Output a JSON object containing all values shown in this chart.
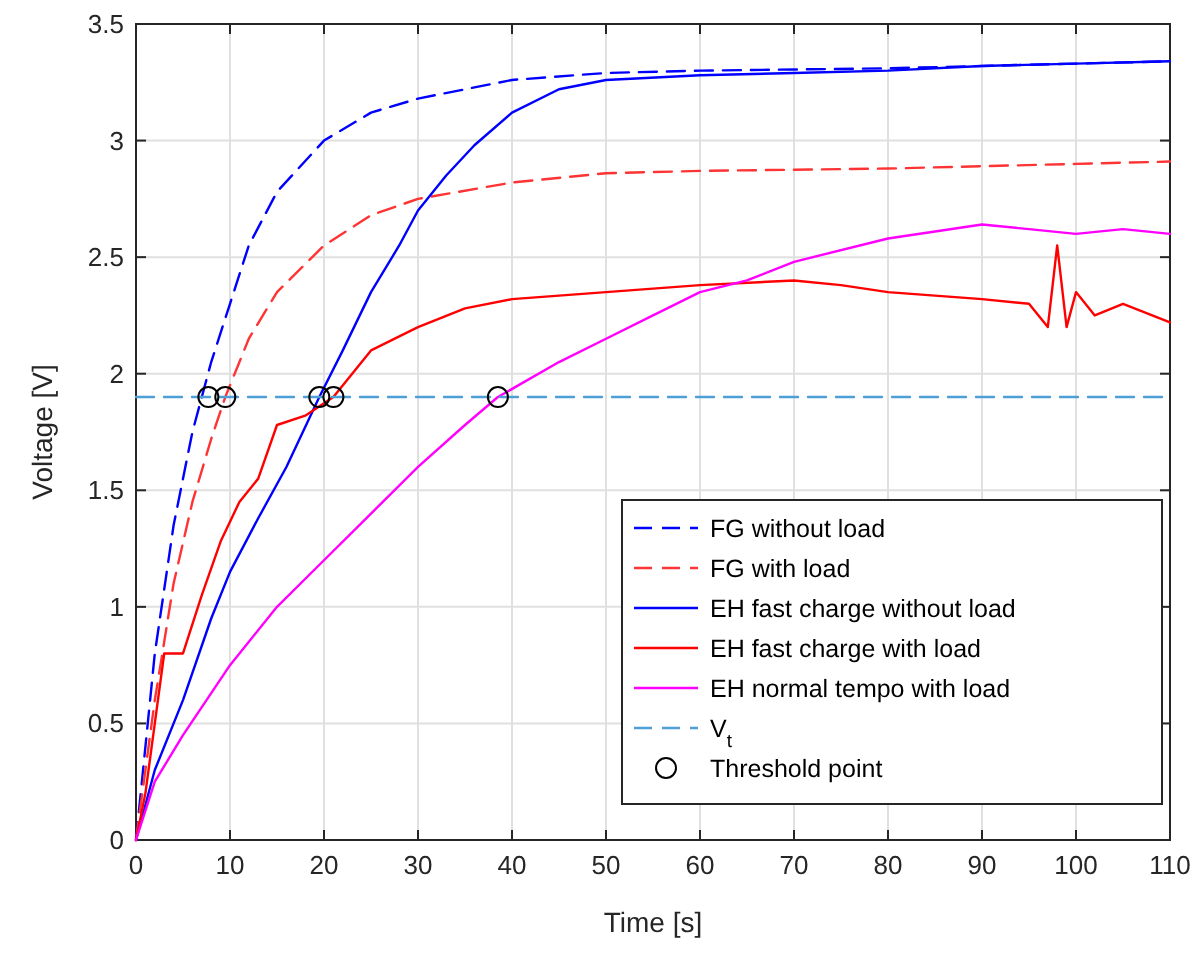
{
  "chart_data": {
    "type": "line",
    "xlabel": "Time [s]",
    "ylabel": "Voltage [V]",
    "xlim": [
      0,
      110
    ],
    "ylim": [
      0,
      3.5
    ],
    "xticks": [
      0,
      10,
      20,
      30,
      40,
      50,
      60,
      70,
      80,
      90,
      100,
      110
    ],
    "yticks": [
      0,
      0.5,
      1,
      1.5,
      2,
      2.5,
      3,
      3.5
    ],
    "grid": true,
    "legend": "bottom right",
    "series": [
      {
        "name": "FG without load",
        "color": "#0000ff",
        "line_style": "dashed",
        "x": [
          0,
          2,
          4,
          6,
          8,
          10,
          12,
          15,
          20,
          25,
          30,
          40,
          50,
          60,
          80,
          100,
          110
        ],
        "values": [
          0,
          0.8,
          1.35,
          1.75,
          2.05,
          2.3,
          2.55,
          2.78,
          3.0,
          3.12,
          3.18,
          3.26,
          3.29,
          3.3,
          3.31,
          3.33,
          3.34
        ]
      },
      {
        "name": "FG with load",
        "color": "#ff3333",
        "line_style": "dashed",
        "x": [
          0,
          2,
          4,
          6,
          8,
          9.5,
          12,
          15,
          20,
          25,
          30,
          40,
          50,
          60,
          80,
          100,
          110
        ],
        "values": [
          0,
          0.6,
          1.1,
          1.45,
          1.72,
          1.9,
          2.15,
          2.35,
          2.55,
          2.68,
          2.75,
          2.82,
          2.86,
          2.87,
          2.88,
          2.9,
          2.91
        ]
      },
      {
        "name": "EH fast charge without load",
        "color": "#0000ff",
        "line_style": "solid",
        "x": [
          0,
          2,
          5,
          8,
          10,
          13,
          16,
          19.5,
          22,
          25,
          28,
          30,
          33,
          36,
          40,
          45,
          50,
          60,
          70,
          80,
          90,
          100,
          110
        ],
        "values": [
          0,
          0.3,
          0.6,
          0.95,
          1.15,
          1.38,
          1.6,
          1.9,
          2.1,
          2.35,
          2.55,
          2.7,
          2.85,
          2.98,
          3.12,
          3.22,
          3.26,
          3.28,
          3.29,
          3.3,
          3.32,
          3.33,
          3.34
        ]
      },
      {
        "name": "EH fast charge with load",
        "color": "#ff0000",
        "line_style": "solid",
        "x": [
          0,
          1,
          3,
          5,
          7,
          9,
          11,
          13,
          15,
          18,
          21,
          23,
          25,
          30,
          35,
          40,
          50,
          60,
          70,
          75,
          80,
          90,
          95,
          97,
          98,
          99,
          100,
          102,
          105,
          110
        ],
        "values": [
          0,
          0.2,
          0.8,
          0.8,
          1.05,
          1.28,
          1.45,
          1.55,
          1.78,
          1.82,
          1.9,
          2.0,
          2.1,
          2.2,
          2.28,
          2.32,
          2.35,
          2.38,
          2.4,
          2.38,
          2.35,
          2.32,
          2.3,
          2.2,
          2.55,
          2.2,
          2.35,
          2.25,
          2.3,
          2.22
        ]
      },
      {
        "name": "EH normal tempo with load",
        "color": "#ff00ff",
        "line_style": "solid",
        "x": [
          0,
          2,
          5,
          10,
          15,
          20,
          25,
          30,
          35,
          38.5,
          45,
          50,
          55,
          60,
          65,
          70,
          80,
          90,
          95,
          100,
          105,
          110
        ],
        "values": [
          0,
          0.25,
          0.45,
          0.75,
          1.0,
          1.2,
          1.4,
          1.6,
          1.78,
          1.9,
          2.05,
          2.15,
          2.25,
          2.35,
          2.4,
          2.48,
          2.58,
          2.64,
          2.62,
          2.6,
          2.62,
          2.6
        ]
      },
      {
        "name": "V$_{t}$",
        "color": "#4d9fd6",
        "line_style": "dashed",
        "x": [
          0,
          110
        ],
        "values": [
          1.9,
          1.9
        ]
      },
      {
        "name": "Threshold point",
        "type": "scatter",
        "marker": "circle",
        "color": "#000000",
        "x": [
          7.7,
          9.5,
          19.5,
          21,
          38.5
        ],
        "values": [
          1.9,
          1.9,
          1.9,
          1.9,
          1.9
        ]
      }
    ]
  }
}
